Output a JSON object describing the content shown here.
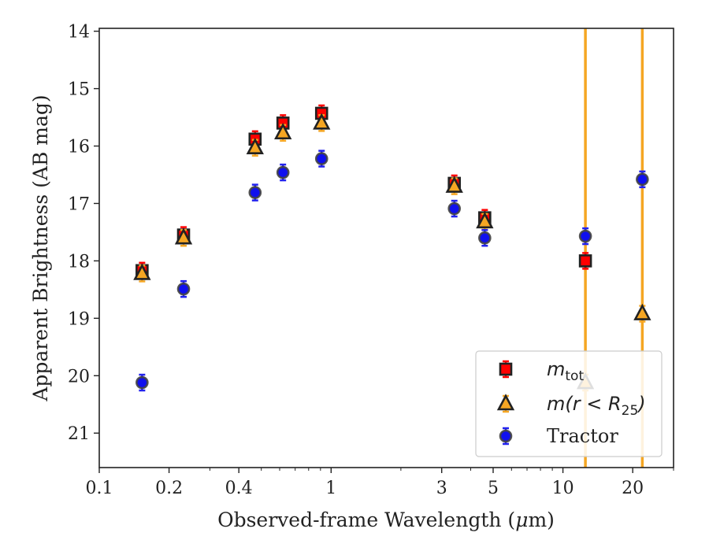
{
  "chart_data": {
    "type": "scatter",
    "xlabel_pre": "Observed-frame Wavelength (",
    "xlabel_mu": "μ",
    "xlabel_post": "m)",
    "ylabel": "Apparent Brightness (AB mag)",
    "x_scale": "log",
    "xlim": [
      0.1,
      30
    ],
    "ylim": [
      21.6,
      13.95
    ],
    "y_inverted": true,
    "x_tick_values": [
      0.1,
      0.2,
      0.4,
      1,
      3,
      5,
      10,
      20
    ],
    "x_tick_labels": [
      "0.1",
      "0.2",
      "0.4",
      "1",
      "3",
      "5",
      "10",
      "20"
    ],
    "y_tick_values": [
      14,
      15,
      16,
      17,
      18,
      19,
      20,
      21
    ],
    "y_tick_labels": [
      "14",
      "15",
      "16",
      "17",
      "18",
      "19",
      "20",
      "21"
    ],
    "grid": false,
    "legend_placement": "lower-right",
    "upper_limit_lines_x": [
      12.5,
      22.0
    ],
    "upper_limit_line_color": "#f5a623",
    "series": [
      {
        "key": "mtot",
        "legend_main": "m",
        "legend_sub": "tot",
        "marker": "square",
        "face_color": "#ff0000",
        "edge_color": "#222222",
        "error_color": "#ff0000",
        "x": [
          0.153,
          0.231,
          0.47,
          0.62,
          0.91,
          3.4,
          4.6,
          12.5
        ],
        "y": [
          18.17,
          17.55,
          15.88,
          15.6,
          15.43,
          16.65,
          17.25,
          18.0
        ]
      },
      {
        "key": "mr25",
        "legend_main": "m(r < R",
        "legend_sub": "25",
        "legend_end": ")",
        "marker": "triangle",
        "face_color": "#f5a623",
        "edge_color": "#222222",
        "error_color": "#f5a623",
        "x": [
          0.153,
          0.231,
          0.47,
          0.62,
          0.91,
          3.4,
          4.6,
          12.5,
          22.0
        ],
        "y": [
          18.22,
          17.6,
          16.03,
          15.77,
          15.6,
          16.7,
          17.32,
          20.12,
          18.92
        ]
      },
      {
        "key": "tractor",
        "legend_main": "Tractor",
        "marker": "circle",
        "face_color": "#1010ee",
        "edge_color": "#444444",
        "error_color": "#2222ee",
        "x": [
          0.153,
          0.231,
          0.47,
          0.62,
          0.91,
          3.4,
          4.6,
          12.5,
          22.0
        ],
        "y": [
          20.12,
          18.49,
          16.81,
          16.46,
          16.22,
          17.09,
          17.6,
          17.57,
          16.58
        ]
      }
    ]
  }
}
